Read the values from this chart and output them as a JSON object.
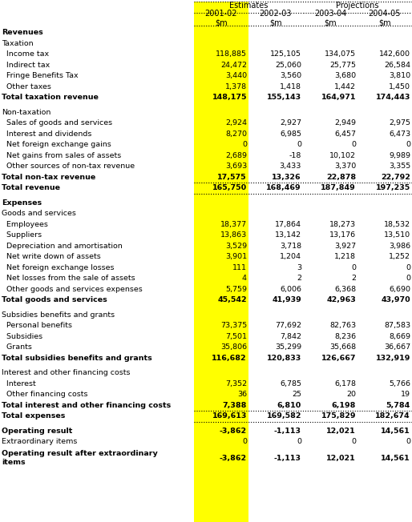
{
  "rows": [
    {
      "label": "Revenues",
      "values": [
        "",
        "",
        "",
        ""
      ],
      "style": "section_bold"
    },
    {
      "label": "Taxation",
      "values": [
        "",
        "",
        "",
        ""
      ],
      "style": "section"
    },
    {
      "label": "  Income tax",
      "values": [
        "118,885",
        "125,105",
        "134,075",
        "142,600"
      ],
      "style": "normal"
    },
    {
      "label": "  Indirect tax",
      "values": [
        "24,472",
        "25,060",
        "25,775",
        "26,584"
      ],
      "style": "normal"
    },
    {
      "label": "  Fringe Benefits Tax",
      "values": [
        "3,440",
        "3,560",
        "3,680",
        "3,810"
      ],
      "style": "normal"
    },
    {
      "label": "  Other taxes",
      "values": [
        "1,378",
        "1,418",
        "1,442",
        "1,450"
      ],
      "style": "normal"
    },
    {
      "label": "Total taxation revenue",
      "values": [
        "148,175",
        "155,143",
        "164,971",
        "174,443"
      ],
      "style": "total_bold"
    },
    {
      "label": "",
      "values": [
        "",
        "",
        "",
        ""
      ],
      "style": "empty"
    },
    {
      "label": "Non-taxation",
      "values": [
        "",
        "",
        "",
        ""
      ],
      "style": "section"
    },
    {
      "label": "  Sales of goods and services",
      "values": [
        "2,924",
        "2,927",
        "2,949",
        "2,975"
      ],
      "style": "normal"
    },
    {
      "label": "  Interest and dividends",
      "values": [
        "8,270",
        "6,985",
        "6,457",
        "6,473"
      ],
      "style": "normal"
    },
    {
      "label": "  Net foreign exchange gains",
      "values": [
        "0",
        "0",
        "0",
        "0"
      ],
      "style": "normal"
    },
    {
      "label": "  Net gains from sales of assets",
      "values": [
        "2,689",
        "-18",
        "10,102",
        "9,989"
      ],
      "style": "normal"
    },
    {
      "label": "  Other sources of non-tax revenue",
      "values": [
        "3,693",
        "3,433",
        "3,370",
        "3,355"
      ],
      "style": "normal"
    },
    {
      "label": "Total non-tax revenue",
      "values": [
        "17,575",
        "13,326",
        "22,878",
        "22,792"
      ],
      "style": "total_bold"
    },
    {
      "label": "Total revenue",
      "values": [
        "165,750",
        "168,469",
        "187,849",
        "197,235"
      ],
      "style": "total_bold_border"
    },
    {
      "label": "",
      "values": [
        "",
        "",
        "",
        ""
      ],
      "style": "empty"
    },
    {
      "label": "Expenses",
      "values": [
        "",
        "",
        "",
        ""
      ],
      "style": "section_bold"
    },
    {
      "label": "Goods and services",
      "values": [
        "",
        "",
        "",
        ""
      ],
      "style": "section"
    },
    {
      "label": "  Employees",
      "values": [
        "18,377",
        "17,864",
        "18,273",
        "18,532"
      ],
      "style": "normal"
    },
    {
      "label": "  Suppliers",
      "values": [
        "13,863",
        "13,142",
        "13,176",
        "13,510"
      ],
      "style": "normal"
    },
    {
      "label": "  Depreciation and amortisation",
      "values": [
        "3,529",
        "3,718",
        "3,927",
        "3,986"
      ],
      "style": "normal"
    },
    {
      "label": "  Net write down of assets",
      "values": [
        "3,901",
        "1,204",
        "1,218",
        "1,252"
      ],
      "style": "normal"
    },
    {
      "label": "  Net foreign exchange losses",
      "values": [
        "111",
        "3",
        "0",
        "0"
      ],
      "style": "normal"
    },
    {
      "label": "  Net losses from the sale of assets",
      "values": [
        "4",
        "2",
        "2",
        "0"
      ],
      "style": "normal"
    },
    {
      "label": "  Other goods and services expenses",
      "values": [
        "5,759",
        "6,006",
        "6,368",
        "6,690"
      ],
      "style": "normal"
    },
    {
      "label": "Total goods and services",
      "values": [
        "45,542",
        "41,939",
        "42,963",
        "43,970"
      ],
      "style": "total_bold"
    },
    {
      "label": "",
      "values": [
        "",
        "",
        "",
        ""
      ],
      "style": "empty"
    },
    {
      "label": "Subsidies benefits and grants",
      "values": [
        "",
        "",
        "",
        ""
      ],
      "style": "section"
    },
    {
      "label": "  Personal benefits",
      "values": [
        "73,375",
        "77,692",
        "82,763",
        "87,583"
      ],
      "style": "normal"
    },
    {
      "label": "  Subsidies",
      "values": [
        "7,501",
        "7,842",
        "8,236",
        "8,669"
      ],
      "style": "normal"
    },
    {
      "label": "  Grants",
      "values": [
        "35,806",
        "35,299",
        "35,668",
        "36,667"
      ],
      "style": "normal"
    },
    {
      "label": "Total subsidies benefits and grants",
      "values": [
        "116,682",
        "120,833",
        "126,667",
        "132,919"
      ],
      "style": "total_bold"
    },
    {
      "label": "",
      "values": [
        "",
        "",
        "",
        ""
      ],
      "style": "empty"
    },
    {
      "label": "Interest and other financing costs",
      "values": [
        "",
        "",
        "",
        ""
      ],
      "style": "section"
    },
    {
      "label": "  Interest",
      "values": [
        "7,352",
        "6,785",
        "6,178",
        "5,766"
      ],
      "style": "normal"
    },
    {
      "label": "  Other financing costs",
      "values": [
        "36",
        "25",
        "20",
        "19"
      ],
      "style": "normal"
    },
    {
      "label": "Total interest and other financing costs",
      "values": [
        "7,388",
        "6,810",
        "6,198",
        "5,784"
      ],
      "style": "total_bold"
    },
    {
      "label": "Total expenses",
      "values": [
        "169,613",
        "169,582",
        "175,829",
        "182,674"
      ],
      "style": "total_bold_border"
    },
    {
      "label": "",
      "values": [
        "",
        "",
        "",
        ""
      ],
      "style": "empty"
    },
    {
      "label": "Operating result",
      "values": [
        "-3,862",
        "-1,113",
        "12,021",
        "14,561"
      ],
      "style": "total_bold"
    },
    {
      "label": "Extraordinary items",
      "values": [
        "0",
        "0",
        "0",
        "0"
      ],
      "style": "normal"
    },
    {
      "label": "Operating result after extraordinary\nitems",
      "values": [
        "-3,862",
        "-1,113",
        "12,021",
        "14,561"
      ],
      "style": "total_bold_yellow"
    }
  ],
  "col_yellow_bg": "#FFFF00",
  "font_size": 6.8,
  "header_font_size": 7.0
}
